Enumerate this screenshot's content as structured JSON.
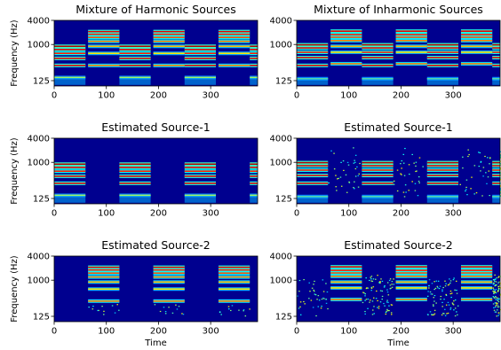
{
  "chart_data": [
    {
      "type": "heatmap",
      "title": "Mixture of Harmonic Sources",
      "xlabel": "",
      "ylabel": "Frequency (Hz)",
      "xticks": [
        "0",
        "100",
        "200",
        "300"
      ],
      "yticks": [
        "125",
        "1000",
        "4000"
      ],
      "xlim": [
        0,
        390
      ],
      "y_scale": "log",
      "source_a_segments": [
        [
          0,
          60
        ],
        [
          125,
          185
        ],
        [
          250,
          310
        ],
        [
          375,
          390
        ]
      ],
      "source_b_segments": [
        [
          65,
          125
        ],
        [
          190,
          250
        ],
        [
          315,
          375
        ]
      ],
      "source_a_harmonics_hz": [
        150,
        300,
        450,
        600,
        750,
        900
      ],
      "source_b_harmonics_hz": [
        300,
        600,
        900,
        1200,
        1500,
        1800,
        2100
      ],
      "colormap": "jet"
    },
    {
      "type": "heatmap",
      "title": "Mixture of Inharmonic Sources",
      "xlabel": "",
      "ylabel": "",
      "xticks": [
        "0",
        "100",
        "200",
        "300"
      ],
      "yticks": [
        "125",
        "1000",
        "4000"
      ],
      "xlim": [
        0,
        390
      ],
      "y_scale": "log",
      "source_a_segments": [
        [
          0,
          60
        ],
        [
          125,
          185
        ],
        [
          250,
          310
        ],
        [
          375,
          390
        ]
      ],
      "source_b_segments": [
        [
          65,
          125
        ],
        [
          190,
          250
        ],
        [
          315,
          375
        ]
      ],
      "colormap": "jet"
    },
    {
      "type": "heatmap",
      "title": "Estimated Source-1",
      "xlabel": "",
      "ylabel": "Frequency (Hz)",
      "xticks": [
        "0",
        "100",
        "200",
        "300"
      ],
      "yticks": [
        "125",
        "1000",
        "4000"
      ],
      "xlim": [
        0,
        390
      ],
      "y_scale": "log",
      "colormap": "jet"
    },
    {
      "type": "heatmap",
      "title": "Estimated Source-1",
      "xlabel": "",
      "ylabel": "",
      "xticks": [
        "0",
        "100",
        "200",
        "300"
      ],
      "yticks": [
        "125",
        "1000",
        "4000"
      ],
      "xlim": [
        0,
        390
      ],
      "y_scale": "log",
      "colormap": "jet"
    },
    {
      "type": "heatmap",
      "title": "Estimated Source-2",
      "xlabel": "Time",
      "ylabel": "Frequency (Hz)",
      "xticks": [
        "0",
        "100",
        "200",
        "300"
      ],
      "yticks": [
        "125",
        "1000",
        "4000"
      ],
      "xlim": [
        0,
        390
      ],
      "y_scale": "log",
      "colormap": "jet"
    },
    {
      "type": "heatmap",
      "title": "Estimated Source-2",
      "xlabel": "Time",
      "ylabel": "",
      "xticks": [
        "0",
        "100",
        "200",
        "300"
      ],
      "yticks": [
        "125",
        "1000",
        "4000"
      ],
      "xlim": [
        0,
        390
      ],
      "y_scale": "log",
      "colormap": "jet"
    }
  ]
}
